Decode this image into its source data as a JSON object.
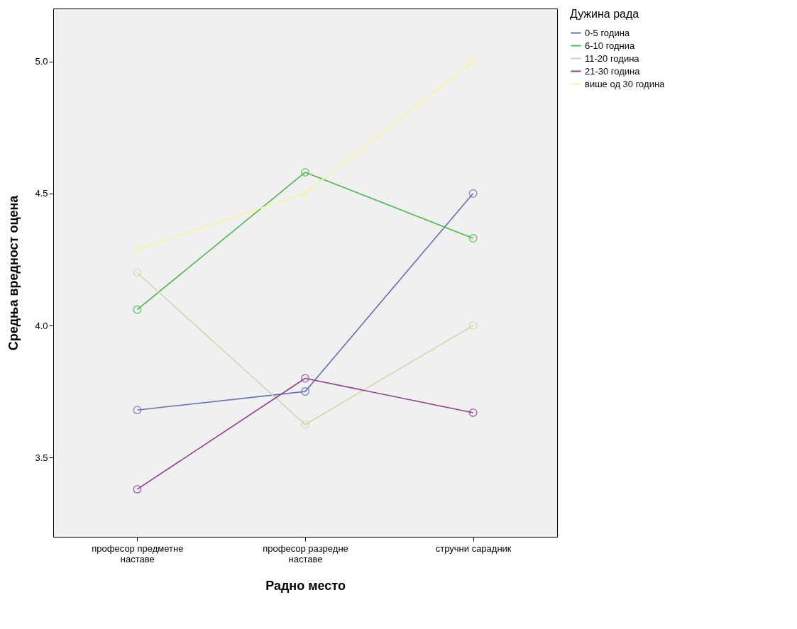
{
  "chart_data": {
    "type": "line",
    "xlabel": "Радно место",
    "ylabel": "Средња вредност оцена",
    "legend_title": "Дужина рада",
    "categories": [
      "професор предметне наставе",
      "професор разредне наставе",
      "стручни сарадник"
    ],
    "series": [
      {
        "name": "0-5 година",
        "color": "#6470b4",
        "values": [
          3.68,
          3.75,
          4.5
        ]
      },
      {
        "name": "6-10 годниа",
        "color": "#4cb84c",
        "values": [
          4.06,
          4.58,
          4.33
        ]
      },
      {
        "name": "11-20 година",
        "color": "#d8d2ae",
        "values": [
          4.2,
          3.625,
          4.0
        ]
      },
      {
        "name": "21-30 година",
        "color": "#8e3f8e",
        "values": [
          3.38,
          3.8,
          3.67
        ]
      },
      {
        "name": "више од 30 година",
        "color": "#f7f39c",
        "values": [
          4.29,
          4.5,
          5.0
        ]
      }
    ],
    "ylim": [
      3.2,
      5.2
    ],
    "yticks": [
      3.5,
      {
        "value": 4.0,
        "label": "4.0"
      },
      4.5,
      {
        "value": 5.0,
        "label": "5.0"
      }
    ],
    "grid": false,
    "legend": "top right",
    "marker": "circle",
    "line_style": "solid"
  }
}
